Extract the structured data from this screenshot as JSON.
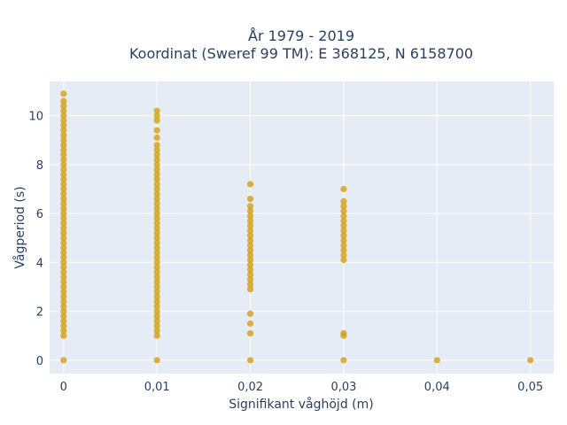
{
  "chart_data": {
    "type": "scatter",
    "title_line1": "År 1979 - 2019",
    "title_line2": "Koordinat (Sweref 99 TM): E 368125, N 6158700",
    "xlabel": "Signifikant våghöjd (m)",
    "ylabel": "Vågperiod (s)",
    "xlim": [
      -0.0015,
      0.0525
    ],
    "ylim": [
      -0.55,
      11.4
    ],
    "x_ticks": [
      0,
      0.01,
      0.02,
      0.03,
      0.04,
      0.05
    ],
    "x_tick_labels": [
      "0",
      "0,01",
      "0,02",
      "0,03",
      "0,04",
      "0,05"
    ],
    "y_ticks": [
      0,
      2,
      4,
      6,
      8,
      10
    ],
    "y_tick_labels": [
      "0",
      "2",
      "4",
      "6",
      "8",
      "10"
    ],
    "grid": true,
    "point_color": "#d4a017",
    "plot_bg": "#e5ecf6",
    "series": [
      {
        "points": [
          {
            "x": 0,
            "y": 0.0
          },
          {
            "x": 0,
            "y": 1.0
          },
          {
            "x": 0,
            "y": 1.2
          },
          {
            "x": 0,
            "y": 1.4
          },
          {
            "x": 0,
            "y": 1.6
          },
          {
            "x": 0,
            "y": 1.8
          },
          {
            "x": 0,
            "y": 2.0
          },
          {
            "x": 0,
            "y": 2.2
          },
          {
            "x": 0,
            "y": 2.4
          },
          {
            "x": 0,
            "y": 2.6
          },
          {
            "x": 0,
            "y": 2.8
          },
          {
            "x": 0,
            "y": 3.0
          },
          {
            "x": 0,
            "y": 3.2
          },
          {
            "x": 0,
            "y": 3.4
          },
          {
            "x": 0,
            "y": 3.6
          },
          {
            "x": 0,
            "y": 3.8
          },
          {
            "x": 0,
            "y": 4.0
          },
          {
            "x": 0,
            "y": 4.2
          },
          {
            "x": 0,
            "y": 4.4
          },
          {
            "x": 0,
            "y": 4.6
          },
          {
            "x": 0,
            "y": 4.8
          },
          {
            "x": 0,
            "y": 5.0
          },
          {
            "x": 0,
            "y": 5.2
          },
          {
            "x": 0,
            "y": 5.4
          },
          {
            "x": 0,
            "y": 5.6
          },
          {
            "x": 0,
            "y": 5.8
          },
          {
            "x": 0,
            "y": 6.0
          },
          {
            "x": 0,
            "y": 6.2
          },
          {
            "x": 0,
            "y": 6.4
          },
          {
            "x": 0,
            "y": 6.6
          },
          {
            "x": 0,
            "y": 6.8
          },
          {
            "x": 0,
            "y": 7.0
          },
          {
            "x": 0,
            "y": 7.2
          },
          {
            "x": 0,
            "y": 7.4
          },
          {
            "x": 0,
            "y": 7.6
          },
          {
            "x": 0,
            "y": 7.8
          },
          {
            "x": 0,
            "y": 8.0
          },
          {
            "x": 0,
            "y": 8.2
          },
          {
            "x": 0,
            "y": 8.4
          },
          {
            "x": 0,
            "y": 8.6
          },
          {
            "x": 0,
            "y": 8.8
          },
          {
            "x": 0,
            "y": 9.0
          },
          {
            "x": 0,
            "y": 9.2
          },
          {
            "x": 0,
            "y": 9.4
          },
          {
            "x": 0,
            "y": 9.6
          },
          {
            "x": 0,
            "y": 9.8
          },
          {
            "x": 0,
            "y": 10.0
          },
          {
            "x": 0,
            "y": 10.2
          },
          {
            "x": 0,
            "y": 10.4
          },
          {
            "x": 0,
            "y": 10.6
          },
          {
            "x": 0,
            "y": 10.9
          },
          {
            "x": 0.01,
            "y": 0.0
          },
          {
            "x": 0.01,
            "y": 1.0
          },
          {
            "x": 0.01,
            "y": 1.2
          },
          {
            "x": 0.01,
            "y": 1.4
          },
          {
            "x": 0.01,
            "y": 1.6
          },
          {
            "x": 0.01,
            "y": 1.8
          },
          {
            "x": 0.01,
            "y": 2.0
          },
          {
            "x": 0.01,
            "y": 2.2
          },
          {
            "x": 0.01,
            "y": 2.4
          },
          {
            "x": 0.01,
            "y": 2.6
          },
          {
            "x": 0.01,
            "y": 2.8
          },
          {
            "x": 0.01,
            "y": 3.0
          },
          {
            "x": 0.01,
            "y": 3.2
          },
          {
            "x": 0.01,
            "y": 3.4
          },
          {
            "x": 0.01,
            "y": 3.6
          },
          {
            "x": 0.01,
            "y": 3.8
          },
          {
            "x": 0.01,
            "y": 4.0
          },
          {
            "x": 0.01,
            "y": 4.2
          },
          {
            "x": 0.01,
            "y": 4.4
          },
          {
            "x": 0.01,
            "y": 4.6
          },
          {
            "x": 0.01,
            "y": 4.8
          },
          {
            "x": 0.01,
            "y": 5.0
          },
          {
            "x": 0.01,
            "y": 5.2
          },
          {
            "x": 0.01,
            "y": 5.4
          },
          {
            "x": 0.01,
            "y": 5.6
          },
          {
            "x": 0.01,
            "y": 5.8
          },
          {
            "x": 0.01,
            "y": 6.0
          },
          {
            "x": 0.01,
            "y": 6.2
          },
          {
            "x": 0.01,
            "y": 6.4
          },
          {
            "x": 0.01,
            "y": 6.6
          },
          {
            "x": 0.01,
            "y": 6.8
          },
          {
            "x": 0.01,
            "y": 7.0
          },
          {
            "x": 0.01,
            "y": 7.2
          },
          {
            "x": 0.01,
            "y": 7.4
          },
          {
            "x": 0.01,
            "y": 7.6
          },
          {
            "x": 0.01,
            "y": 7.8
          },
          {
            "x": 0.01,
            "y": 8.0
          },
          {
            "x": 0.01,
            "y": 8.2
          },
          {
            "x": 0.01,
            "y": 8.4
          },
          {
            "x": 0.01,
            "y": 8.6
          },
          {
            "x": 0.01,
            "y": 8.8
          },
          {
            "x": 0.01,
            "y": 9.1
          },
          {
            "x": 0.01,
            "y": 9.4
          },
          {
            "x": 0.01,
            "y": 9.8
          },
          {
            "x": 0.01,
            "y": 10.0
          },
          {
            "x": 0.01,
            "y": 10.2
          },
          {
            "x": 0.02,
            "y": 0.0
          },
          {
            "x": 0.02,
            "y": 1.1
          },
          {
            "x": 0.02,
            "y": 1.5
          },
          {
            "x": 0.02,
            "y": 1.9
          },
          {
            "x": 0.02,
            "y": 2.9
          },
          {
            "x": 0.02,
            "y": 3.1
          },
          {
            "x": 0.02,
            "y": 3.3
          },
          {
            "x": 0.02,
            "y": 3.5
          },
          {
            "x": 0.02,
            "y": 3.7
          },
          {
            "x": 0.02,
            "y": 3.9
          },
          {
            "x": 0.02,
            "y": 4.1
          },
          {
            "x": 0.02,
            "y": 4.3
          },
          {
            "x": 0.02,
            "y": 4.5
          },
          {
            "x": 0.02,
            "y": 4.7
          },
          {
            "x": 0.02,
            "y": 4.9
          },
          {
            "x": 0.02,
            "y": 5.1
          },
          {
            "x": 0.02,
            "y": 5.3
          },
          {
            "x": 0.02,
            "y": 5.5
          },
          {
            "x": 0.02,
            "y": 5.7
          },
          {
            "x": 0.02,
            "y": 5.9
          },
          {
            "x": 0.02,
            "y": 6.1
          },
          {
            "x": 0.02,
            "y": 6.3
          },
          {
            "x": 0.02,
            "y": 6.6
          },
          {
            "x": 0.02,
            "y": 7.2
          },
          {
            "x": 0.03,
            "y": 0.0
          },
          {
            "x": 0.03,
            "y": 1.0
          },
          {
            "x": 0.03,
            "y": 1.1
          },
          {
            "x": 0.03,
            "y": 4.1
          },
          {
            "x": 0.03,
            "y": 4.3
          },
          {
            "x": 0.03,
            "y": 4.5
          },
          {
            "x": 0.03,
            "y": 4.7
          },
          {
            "x": 0.03,
            "y": 4.9
          },
          {
            "x": 0.03,
            "y": 5.1
          },
          {
            "x": 0.03,
            "y": 5.3
          },
          {
            "x": 0.03,
            "y": 5.5
          },
          {
            "x": 0.03,
            "y": 5.7
          },
          {
            "x": 0.03,
            "y": 5.9
          },
          {
            "x": 0.03,
            "y": 6.1
          },
          {
            "x": 0.03,
            "y": 6.3
          },
          {
            "x": 0.03,
            "y": 6.5
          },
          {
            "x": 0.03,
            "y": 7.0
          },
          {
            "x": 0.04,
            "y": 0.0
          },
          {
            "x": 0.05,
            "y": 0.0
          }
        ]
      }
    ]
  }
}
